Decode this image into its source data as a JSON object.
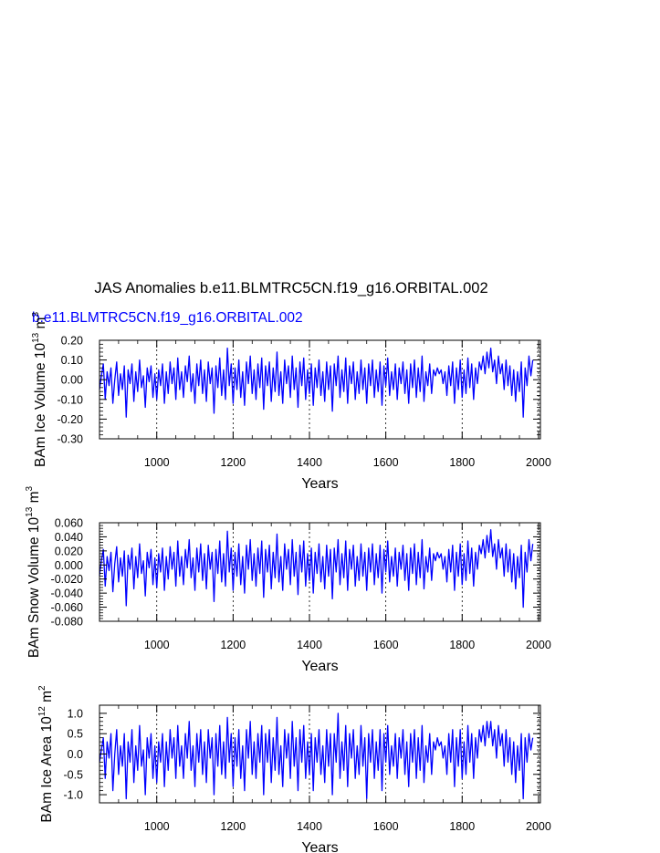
{
  "title": "JAS Anomalies b.e11.BLMTRC5CN.f19_g16.ORBITAL.002",
  "subtitle": "b.e11.BLMTRC5CN.f19_g16.ORBITAL.002",
  "colors": {
    "series": "#0000ff",
    "subtitle": "#0000ff",
    "axes": "#000000",
    "grid": "#000000"
  },
  "chart_data": [
    {
      "type": "line",
      "ylabel_main": "BAm Ice Volume 10",
      "ylabel_exp": "13",
      "ylabel_unit": "m",
      "ylabel_unit_exp": "3",
      "xlabel": "Years",
      "xlim": [
        850,
        2005
      ],
      "ylim": [
        -0.3,
        0.2
      ],
      "xticks": [
        1000,
        1200,
        1400,
        1600,
        1800,
        2000
      ],
      "xtick_labels": [
        "1000",
        "1200",
        "1400",
        "1600",
        "1800",
        "2000"
      ],
      "yticks": [
        0.2,
        0.1,
        0.0,
        -0.1,
        -0.2,
        -0.3
      ],
      "ytick_labels": [
        "0.20",
        "0.10",
        "0.00",
        "-0.10",
        "-0.20",
        "-0.30"
      ],
      "grid": "vertical dashed at major x ticks",
      "series": [
        {
          "x_start": 850,
          "x_step": 5,
          "values": [
            -0.05,
            0.02,
            0.08,
            -0.1,
            0.04,
            -0.03,
            0.06,
            -0.12,
            0.0,
            0.09,
            -0.08,
            0.03,
            -0.05,
            0.07,
            -0.19,
            0.05,
            -0.02,
            0.08,
            -0.11,
            0.04,
            -0.06,
            0.1,
            -0.04,
            0.02,
            -0.14,
            0.06,
            -0.01,
            0.07,
            -0.09,
            0.03,
            -0.1,
            0.05,
            -0.03,
            0.08,
            -0.12,
            0.04,
            -0.07,
            0.09,
            -0.02,
            0.06,
            -0.1,
            0.11,
            -0.05,
            0.04,
            -0.09,
            0.07,
            -0.01,
            0.12,
            -0.06,
            0.03,
            -0.12,
            0.08,
            -0.03,
            0.1,
            -0.07,
            0.05,
            -0.11,
            0.09,
            -0.02,
            0.06,
            -0.17,
            0.07,
            -0.04,
            0.11,
            -0.08,
            0.05,
            -0.1,
            0.16,
            -0.03,
            0.08,
            -0.12,
            0.06,
            -0.05,
            0.1,
            -0.09,
            0.04,
            -0.13,
            0.09,
            -0.02,
            0.12,
            -0.07,
            0.05,
            -0.1,
            0.08,
            -0.04,
            0.11,
            -0.15,
            0.07,
            -0.03,
            0.09,
            -0.11,
            0.06,
            -0.06,
            0.14,
            -0.08,
            0.04,
            -0.12,
            0.1,
            -0.02,
            0.07,
            -0.09,
            0.12,
            -0.05,
            0.06,
            -0.14,
            0.09,
            -0.03,
            0.11,
            -0.1,
            0.05,
            -0.07,
            0.08,
            -0.13,
            0.06,
            -0.04,
            0.1,
            -0.08,
            0.04,
            -0.11,
            0.09,
            -0.05,
            0.07,
            -0.16,
            0.08,
            -0.03,
            0.12,
            -0.09,
            0.05,
            -0.06,
            0.11,
            -0.12,
            0.07,
            -0.02,
            0.09,
            -0.1,
            0.04,
            -0.07,
            0.1,
            -0.05,
            0.06,
            -0.12,
            0.08,
            -0.03,
            0.1,
            -0.09,
            0.05,
            -0.06,
            0.09,
            -0.13,
            0.07,
            -0.03,
            0.11,
            -0.08,
            0.04,
            -0.05,
            0.08,
            -0.1,
            0.06,
            -0.02,
            0.09,
            -0.07,
            0.05,
            -0.12,
            0.08,
            -0.04,
            0.1,
            -0.09,
            0.06,
            -0.06,
            0.12,
            -0.11,
            0.04,
            -0.03,
            0.08,
            -0.07,
            0.05,
            0.02,
            0.06,
            0.03,
            0.05,
            -0.02,
            0.04,
            -0.08,
            0.07,
            -0.03,
            0.09,
            -0.12,
            0.06,
            -0.05,
            0.1,
            -0.09,
            0.05,
            -0.07,
            0.11,
            -0.04,
            0.08,
            -0.1,
            0.06,
            -0.02,
            0.09,
            0.05,
            0.12,
            0.03,
            0.14,
            0.06,
            0.16,
            0.04,
            0.1,
            -0.02,
            0.12,
            0.03,
            0.08,
            -0.05,
            0.1,
            -0.03,
            0.07,
            -0.08,
            0.05,
            -0.11,
            0.04,
            -0.06,
            0.09,
            -0.19,
            0.06,
            -0.03,
            0.12,
            0.02,
            0.1
          ]
        }
      ]
    },
    {
      "type": "line",
      "ylabel_main": "BAm Snow Volume 10",
      "ylabel_exp": "13",
      "ylabel_unit": "m",
      "ylabel_unit_exp": "3",
      "xlabel": "Years",
      "xlim": [
        850,
        2005
      ],
      "ylim": [
        -0.08,
        0.06
      ],
      "xticks": [
        1000,
        1200,
        1400,
        1600,
        1800,
        2000
      ],
      "xtick_labels": [
        "1000",
        "1200",
        "1400",
        "1600",
        "1800",
        "2000"
      ],
      "yticks": [
        0.06,
        0.04,
        0.02,
        0.0,
        -0.02,
        -0.04,
        -0.06,
        -0.08
      ],
      "ytick_labels": [
        "0.060",
        "0.040",
        "0.020",
        "0.000",
        "-0.020",
        "-0.040",
        "-0.060",
        "-0.080"
      ],
      "grid": "vertical dashed at major x ticks",
      "series": [
        {
          "x_start": 850,
          "x_step": 5,
          "values": [
            -0.015,
            0.006,
            0.022,
            -0.03,
            0.012,
            -0.008,
            0.018,
            -0.038,
            0.002,
            0.026,
            -0.024,
            0.01,
            -0.016,
            0.02,
            -0.058,
            0.014,
            -0.006,
            0.024,
            -0.034,
            0.012,
            -0.018,
            0.03,
            -0.012,
            0.006,
            -0.044,
            0.018,
            -0.004,
            0.022,
            -0.028,
            0.01,
            -0.032,
            0.016,
            -0.01,
            0.024,
            -0.036,
            0.012,
            -0.02,
            0.026,
            -0.006,
            0.018,
            -0.03,
            0.034,
            -0.016,
            0.012,
            -0.028,
            0.022,
            -0.004,
            0.036,
            -0.018,
            0.01,
            -0.036,
            0.024,
            -0.01,
            0.03,
            -0.022,
            0.016,
            -0.034,
            0.028,
            -0.006,
            0.018,
            -0.052,
            0.022,
            -0.012,
            0.034,
            -0.024,
            0.016,
            -0.03,
            0.048,
            -0.01,
            0.024,
            -0.036,
            0.018,
            -0.016,
            0.03,
            -0.028,
            0.012,
            -0.04,
            0.028,
            -0.006,
            0.036,
            -0.022,
            0.016,
            -0.03,
            0.024,
            -0.012,
            0.034,
            -0.046,
            0.022,
            -0.01,
            0.028,
            -0.034,
            0.018,
            -0.018,
            0.044,
            -0.024,
            0.012,
            -0.036,
            0.03,
            -0.006,
            0.022,
            -0.028,
            0.036,
            -0.016,
            0.018,
            -0.042,
            0.028,
            -0.01,
            0.034,
            -0.03,
            0.016,
            -0.022,
            0.024,
            -0.04,
            0.018,
            -0.012,
            0.03,
            -0.024,
            0.012,
            -0.034,
            0.028,
            -0.016,
            0.022,
            -0.048,
            0.024,
            -0.01,
            0.036,
            -0.028,
            0.016,
            -0.018,
            0.034,
            -0.036,
            0.022,
            -0.006,
            0.028,
            -0.03,
            0.012,
            -0.022,
            0.03,
            -0.016,
            0.018,
            -0.036,
            0.024,
            -0.01,
            0.03,
            -0.028,
            0.016,
            -0.018,
            0.028,
            -0.04,
            0.022,
            -0.01,
            0.034,
            -0.024,
            0.012,
            -0.016,
            0.024,
            -0.03,
            0.018,
            -0.006,
            0.028,
            -0.022,
            0.016,
            -0.036,
            0.024,
            -0.012,
            0.03,
            -0.028,
            0.018,
            -0.018,
            0.036,
            -0.034,
            0.012,
            -0.01,
            0.024,
            -0.022,
            0.016,
            0.006,
            0.018,
            0.01,
            0.016,
            -0.006,
            0.012,
            -0.024,
            0.022,
            -0.01,
            0.028,
            -0.036,
            0.018,
            -0.016,
            0.03,
            -0.028,
            0.016,
            -0.022,
            0.034,
            -0.012,
            0.024,
            -0.03,
            0.018,
            -0.006,
            0.028,
            0.016,
            0.036,
            0.01,
            0.042,
            0.018,
            0.05,
            0.012,
            0.03,
            -0.006,
            0.036,
            0.01,
            0.024,
            -0.016,
            0.03,
            -0.01,
            0.022,
            -0.024,
            0.016,
            -0.034,
            0.012,
            -0.018,
            0.028,
            -0.06,
            0.018,
            -0.01,
            0.036,
            0.006,
            0.03
          ]
        }
      ]
    },
    {
      "type": "line",
      "ylabel_main": "BAm Ice Area 10",
      "ylabel_exp": "12",
      "ylabel_unit": "m",
      "ylabel_unit_exp": "2",
      "xlabel": "Years",
      "xlim": [
        850,
        2005
      ],
      "ylim": [
        -1.2,
        1.2
      ],
      "xticks": [
        1000,
        1200,
        1400,
        1600,
        1800,
        2000
      ],
      "xtick_labels": [
        "1000",
        "1200",
        "1400",
        "1600",
        "1800",
        "2000"
      ],
      "yticks": [
        1.0,
        0.5,
        0.0,
        -0.5,
        -1.0
      ],
      "ytick_labels": [
        "1.0",
        "0.5",
        "0.0",
        "-0.5",
        "-1.0"
      ],
      "grid": "vertical dashed at major x ticks",
      "series": [
        {
          "x_start": 850,
          "x_step": 5,
          "values": [
            -0.2,
            0.1,
            0.4,
            -0.6,
            0.3,
            -0.1,
            0.5,
            -0.9,
            0.0,
            0.6,
            -0.5,
            0.2,
            -0.3,
            0.5,
            -1.1,
            0.3,
            -0.2,
            0.6,
            -0.7,
            0.2,
            -0.4,
            0.7,
            -0.3,
            0.1,
            -1.0,
            0.4,
            -0.1,
            0.5,
            -0.6,
            0.2,
            -0.7,
            0.3,
            -0.2,
            0.5,
            -0.8,
            0.3,
            -0.4,
            0.6,
            -0.1,
            0.4,
            -0.6,
            0.7,
            -0.3,
            0.2,
            -0.6,
            0.5,
            -0.1,
            0.8,
            -0.4,
            0.2,
            -0.8,
            0.5,
            -0.2,
            0.6,
            -0.5,
            0.3,
            -0.7,
            0.6,
            -0.1,
            0.4,
            -1.0,
            0.5,
            -0.3,
            0.7,
            -0.5,
            0.3,
            -0.6,
            0.9,
            -0.2,
            0.5,
            -0.8,
            0.4,
            -0.3,
            0.6,
            -0.6,
            0.2,
            -0.9,
            0.6,
            -0.1,
            0.8,
            -0.5,
            0.3,
            -0.6,
            0.5,
            -0.2,
            0.7,
            -1.0,
            0.5,
            -0.2,
            0.6,
            -0.7,
            0.4,
            -0.4,
            0.9,
            -0.5,
            0.2,
            -0.8,
            0.6,
            -0.1,
            0.5,
            -0.6,
            0.8,
            -0.3,
            0.4,
            -0.9,
            0.6,
            -0.2,
            0.7,
            -0.6,
            0.3,
            -0.5,
            0.5,
            -0.9,
            0.4,
            -0.2,
            0.6,
            -0.5,
            0.2,
            -0.7,
            0.6,
            -0.3,
            0.5,
            -1.0,
            0.5,
            -0.2,
            1.0,
            -0.6,
            0.3,
            -0.4,
            0.7,
            -0.8,
            0.5,
            -0.1,
            0.6,
            -0.6,
            0.2,
            -0.5,
            0.7,
            -0.3,
            0.4,
            -1.1,
            0.5,
            -0.2,
            0.6,
            -0.6,
            0.3,
            -0.4,
            0.6,
            -0.9,
            0.5,
            -0.2,
            0.7,
            -0.5,
            0.2,
            -0.3,
            0.5,
            -0.6,
            0.4,
            -0.1,
            0.6,
            -0.5,
            0.3,
            -0.8,
            0.5,
            -0.2,
            0.6,
            -0.6,
            0.4,
            -0.4,
            0.7,
            -0.7,
            0.2,
            -0.2,
            0.5,
            -0.5,
            0.3,
            0.1,
            0.4,
            0.2,
            0.3,
            -0.1,
            0.2,
            -0.5,
            0.5,
            -0.2,
            0.6,
            -0.8,
            0.4,
            -0.3,
            0.6,
            -0.6,
            0.3,
            -0.5,
            0.7,
            -0.2,
            0.5,
            -0.6,
            0.4,
            -0.1,
            0.6,
            0.3,
            0.7,
            0.2,
            0.8,
            0.4,
            0.8,
            0.2,
            0.6,
            -0.1,
            0.7,
            0.2,
            0.5,
            -0.3,
            0.6,
            -0.2,
            0.4,
            -0.5,
            0.3,
            -0.7,
            0.2,
            -0.4,
            0.5,
            -1.1,
            0.4,
            -0.2,
            0.5,
            0.1,
            0.4
          ]
        }
      ]
    }
  ]
}
